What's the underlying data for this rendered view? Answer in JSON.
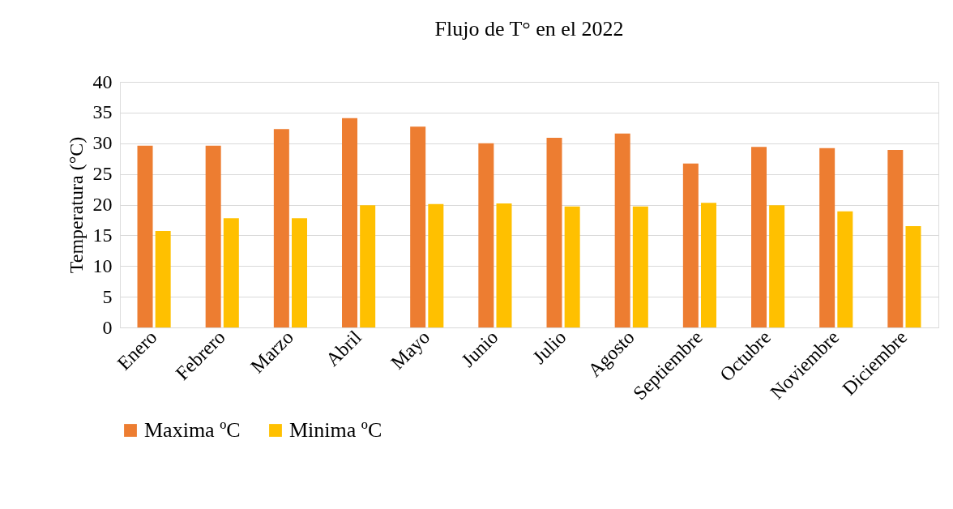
{
  "chart_data": {
    "type": "bar",
    "title": "Flujo de T° en el 2022",
    "ylabel": "Temperatura (°C)",
    "categories": [
      "Enero",
      "Febrero",
      "Marzo",
      "Abril",
      "Mayo",
      "Junio",
      "Julio",
      "Agosto",
      "Septiembre",
      "Octubre",
      "Noviembre",
      "Diciembre"
    ],
    "series": [
      {
        "name": "Maxima ºC",
        "color": "#ed7d31",
        "values": [
          29.6,
          29.6,
          32.3,
          34.1,
          32.7,
          30.0,
          30.9,
          31.6,
          26.7,
          29.4,
          29.2,
          28.9
        ]
      },
      {
        "name": "Minima ºC",
        "color": "#ffc000",
        "values": [
          15.7,
          17.8,
          17.8,
          19.9,
          20.1,
          20.2,
          19.7,
          19.7,
          20.3,
          19.9,
          18.9,
          16.5
        ]
      }
    ],
    "ylim": [
      0,
      40
    ],
    "yticks": [
      0,
      5,
      10,
      15,
      20,
      25,
      30,
      35,
      40
    ],
    "grid": "y",
    "legend": "bottom"
  }
}
